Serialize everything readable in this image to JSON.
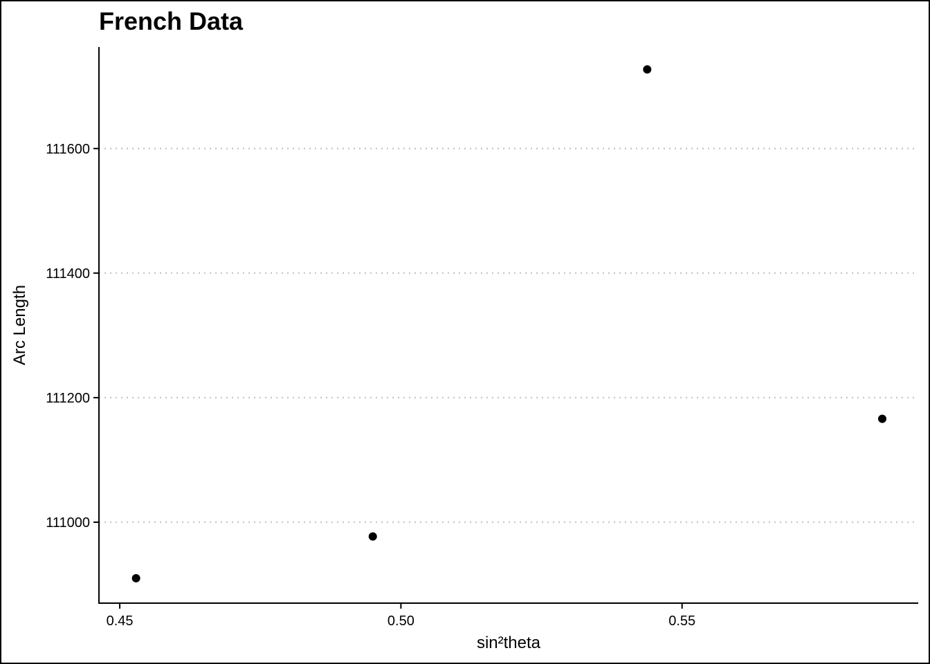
{
  "chart_data": {
    "type": "scatter",
    "title": "French Data",
    "xlabel": "sin²theta",
    "ylabel": "Arc Length",
    "xlim": [
      0.4463,
      0.592
    ],
    "ylim": [
      110870,
      111763
    ],
    "x_ticks": [
      0.45,
      0.5,
      0.55
    ],
    "x_tick_labels": [
      "0.45",
      "0.50",
      "0.55"
    ],
    "y_ticks": [
      111000,
      111200,
      111400,
      111600
    ],
    "y_tick_labels": [
      "111000",
      "111200",
      "111400",
      "111600"
    ],
    "grid": "y-major-dotted",
    "legend": "none",
    "point_color": "#000000",
    "series": [
      {
        "x": [
          0.4529,
          0.495,
          0.5438,
          0.5856
        ],
        "y": [
          110910,
          110977,
          111727,
          111166
        ]
      }
    ]
  }
}
